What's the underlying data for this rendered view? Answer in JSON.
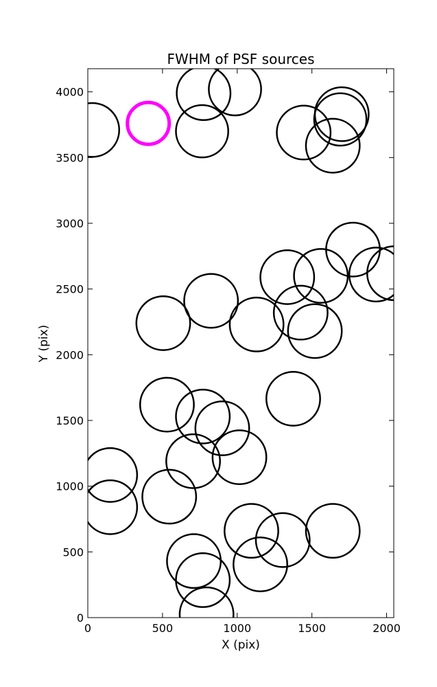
{
  "chart_data": {
    "type": "scatter",
    "title": "FWHM of PSF sources",
    "xlabel": "X (pix)",
    "ylabel": "Y (pix)",
    "xlim": [
      0,
      2048
    ],
    "ylim": [
      0,
      4176
    ],
    "xticks": [
      0,
      500,
      1000,
      1500,
      2000
    ],
    "yticks": [
      0,
      500,
      1000,
      1500,
      2000,
      2500,
      3000,
      3500,
      4000
    ],
    "marker": "circle",
    "marker_size_units": "radius in X (pix)",
    "edge_color": "#000000",
    "highlight_color": "#ff00ff",
    "sources": [
      {
        "x": 30,
        "y": 3710,
        "r": 180
      },
      {
        "x": 405,
        "y": 3760,
        "r": 140,
        "highlight": true
      },
      {
        "x": 775,
        "y": 3990,
        "r": 180
      },
      {
        "x": 985,
        "y": 4020,
        "r": 175
      },
      {
        "x": 765,
        "y": 3700,
        "r": 175
      },
      {
        "x": 1445,
        "y": 3690,
        "r": 180
      },
      {
        "x": 1700,
        "y": 3830,
        "r": 180
      },
      {
        "x": 1690,
        "y": 3790,
        "r": 175
      },
      {
        "x": 1640,
        "y": 3590,
        "r": 180
      },
      {
        "x": 1775,
        "y": 2800,
        "r": 180
      },
      {
        "x": 1930,
        "y": 2610,
        "r": 180
      },
      {
        "x": 2050,
        "y": 2620,
        "r": 180
      },
      {
        "x": 1335,
        "y": 2590,
        "r": 180
      },
      {
        "x": 1560,
        "y": 2600,
        "r": 180
      },
      {
        "x": 1425,
        "y": 2320,
        "r": 180
      },
      {
        "x": 1520,
        "y": 2180,
        "r": 180
      },
      {
        "x": 825,
        "y": 2410,
        "r": 180
      },
      {
        "x": 1130,
        "y": 2230,
        "r": 180
      },
      {
        "x": 505,
        "y": 2240,
        "r": 180
      },
      {
        "x": 530,
        "y": 1620,
        "r": 180
      },
      {
        "x": 770,
        "y": 1530,
        "r": 180
      },
      {
        "x": 900,
        "y": 1440,
        "r": 180
      },
      {
        "x": 1375,
        "y": 1665,
        "r": 180
      },
      {
        "x": 705,
        "y": 1190,
        "r": 180
      },
      {
        "x": 1015,
        "y": 1220,
        "r": 180
      },
      {
        "x": 150,
        "y": 1085,
        "r": 180
      },
      {
        "x": 150,
        "y": 840,
        "r": 180
      },
      {
        "x": 545,
        "y": 920,
        "r": 180
      },
      {
        "x": 1095,
        "y": 660,
        "r": 180
      },
      {
        "x": 1305,
        "y": 590,
        "r": 180
      },
      {
        "x": 1640,
        "y": 660,
        "r": 180
      },
      {
        "x": 710,
        "y": 430,
        "r": 180
      },
      {
        "x": 770,
        "y": 285,
        "r": 180
      },
      {
        "x": 1155,
        "y": 405,
        "r": 180
      },
      {
        "x": 795,
        "y": 25,
        "r": 180
      }
    ]
  }
}
